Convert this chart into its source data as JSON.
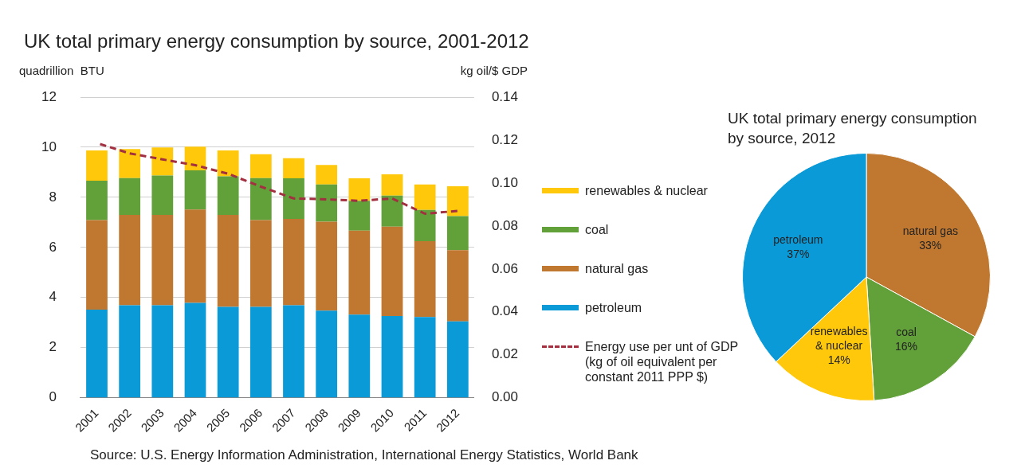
{
  "chart_data": [
    {
      "type": "bar",
      "title": "UK total primary energy consumption by source, 2001-2012",
      "ylabel": "quadrillion  BTU",
      "y2label": "kg oil/$ GDP",
      "categories": [
        "2001",
        "2002",
        "2003",
        "2004",
        "2005",
        "2006",
        "2007",
        "2008",
        "2009",
        "2010",
        "2011",
        "2012"
      ],
      "stacked": true,
      "series": [
        {
          "name": "petroleum",
          "color": "#0a9ad8",
          "values": [
            3.52,
            3.69,
            3.69,
            3.79,
            3.63,
            3.63,
            3.69,
            3.48,
            3.32,
            3.26,
            3.22,
            3.05
          ]
        },
        {
          "name": "natural gas",
          "color": "#c07830",
          "values": [
            3.57,
            3.61,
            3.61,
            3.72,
            3.67,
            3.46,
            3.45,
            3.55,
            3.35,
            3.57,
            3.03,
            2.84
          ]
        },
        {
          "name": "coal",
          "color": "#62a03a",
          "values": [
            1.57,
            1.47,
            1.57,
            1.57,
            1.54,
            1.68,
            1.62,
            1.48,
            1.19,
            1.24,
            1.25,
            1.36
          ]
        },
        {
          "name": "renewables & nuclear",
          "color": "#ffc80a",
          "values": [
            1.21,
            1.16,
            1.12,
            0.94,
            1.03,
            0.95,
            0.8,
            0.78,
            0.9,
            0.85,
            1.01,
            1.19
          ]
        },
        {
          "name": "Energy use per unt of GDP  (kg of oil equivalent per constant 2011 PPP $)",
          "type": "line",
          "axis": "y2",
          "line_style": "dashed",
          "color": "#a33040",
          "values": [
            0.1186,
            0.1138,
            0.111,
            0.1083,
            0.1043,
            0.0983,
            0.0928,
            0.0924,
            0.0917,
            0.0928,
            0.0857,
            0.087
          ]
        }
      ],
      "ylim": [
        0,
        12
      ],
      "yticks": [
        0,
        2,
        4,
        6,
        8,
        10,
        12
      ],
      "y2lim": [
        0,
        0.14
      ],
      "y2ticks": [
        {
          "value": 0,
          "label": "0.00"
        },
        {
          "value": 0.02,
          "label": "0.02"
        },
        {
          "value": 0.04,
          "label": "0.04"
        },
        {
          "value": 0.06,
          "label": "0.06"
        },
        {
          "value": 0.08,
          "label": "0.08"
        },
        {
          "value": 0.1,
          "label": "0.10"
        },
        {
          "value": 0.12,
          "label": "0.12"
        },
        {
          "value": 0.14,
          "label": "0.14"
        }
      ],
      "grid": "y",
      "legend": "right",
      "annotations": [
        "Source: U.S. Energy Information Administration, International Energy Statistics, World Bank"
      ]
    },
    {
      "type": "pie",
      "title": "UK total primary energy consumption by source, 2012",
      "categories": [
        "natural gas",
        "coal",
        "renewables & nuclear",
        "petroleum"
      ],
      "values": [
        33,
        16,
        14,
        37
      ],
      "colors": [
        "#c07830",
        "#62a03a",
        "#ffc80a",
        "#0a9ad8"
      ],
      "value_labels": [
        "33%",
        "16%",
        "14%",
        "37%"
      ]
    }
  ]
}
